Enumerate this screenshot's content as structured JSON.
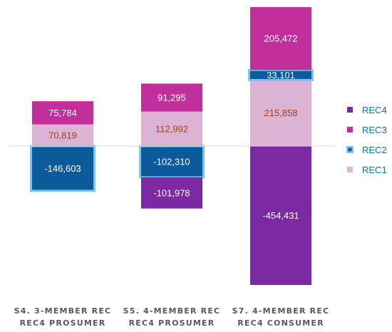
{
  "chart_data": {
    "type": "bar",
    "stacked": true,
    "categories": [
      [
        "S4. 3-MEMBER REC",
        "REC4 PROSUMER"
      ],
      [
        "S5. 4-MEMBER REC",
        "REC4 PROSUMER"
      ],
      [
        "S7. 4-MEMBER REC",
        "REC4 CONSUMER"
      ]
    ],
    "series": [
      {
        "name": "REC4",
        "color": "#7b2aa3",
        "label_color": "#ffffff",
        "values": [
          null,
          -101978,
          -454431
        ]
      },
      {
        "name": "REC3",
        "color": "#c02f9c",
        "label_color": "#ffffff",
        "values": [
          75784,
          91295,
          205472
        ]
      },
      {
        "name": "REC2",
        "color": "#0b5a9c",
        "label_color": "#ffffff",
        "outline": "#7ec3ec",
        "values": [
          -146603,
          -102310,
          33101
        ]
      },
      {
        "name": "REC1",
        "color": "#ddb3d3",
        "label_color": "#a04020",
        "values": [
          70819,
          112992,
          215858
        ]
      }
    ],
    "stack_order": [
      "REC1",
      "REC2",
      "REC3",
      "REC4"
    ],
    "ylim": [
      -560000,
      590000
    ],
    "zero_line_color": "#d9d9d9",
    "legend_position": "right",
    "grid": false
  }
}
